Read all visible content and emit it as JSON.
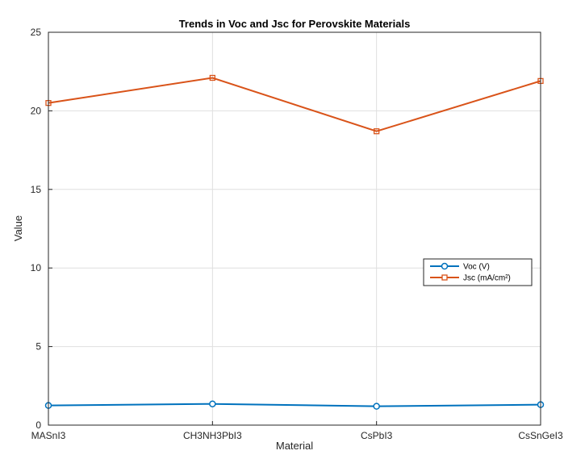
{
  "chart_data": {
    "type": "line",
    "title": "Trends in Voc and Jsc for Perovskite Materials",
    "xlabel": "Material",
    "ylabel": "Value",
    "categories": [
      "MASnI3",
      "CH3NH3PbI3",
      "CsPbI3",
      "CsSnGeI3"
    ],
    "ylim": [
      0,
      25
    ],
    "yticks": [
      "0",
      "5",
      "10",
      "15",
      "20",
      "25"
    ],
    "grid": true,
    "legend_position": "right",
    "series": [
      {
        "name": "Voc (V)",
        "values": [
          1.25,
          1.35,
          1.2,
          1.3
        ],
        "color": "#0072BD",
        "marker": "circle"
      },
      {
        "name": "Jsc  (mA/cm²)",
        "values": [
          20.5,
          22.1,
          18.7,
          21.9
        ],
        "color": "#D95319",
        "marker": "square"
      }
    ]
  }
}
